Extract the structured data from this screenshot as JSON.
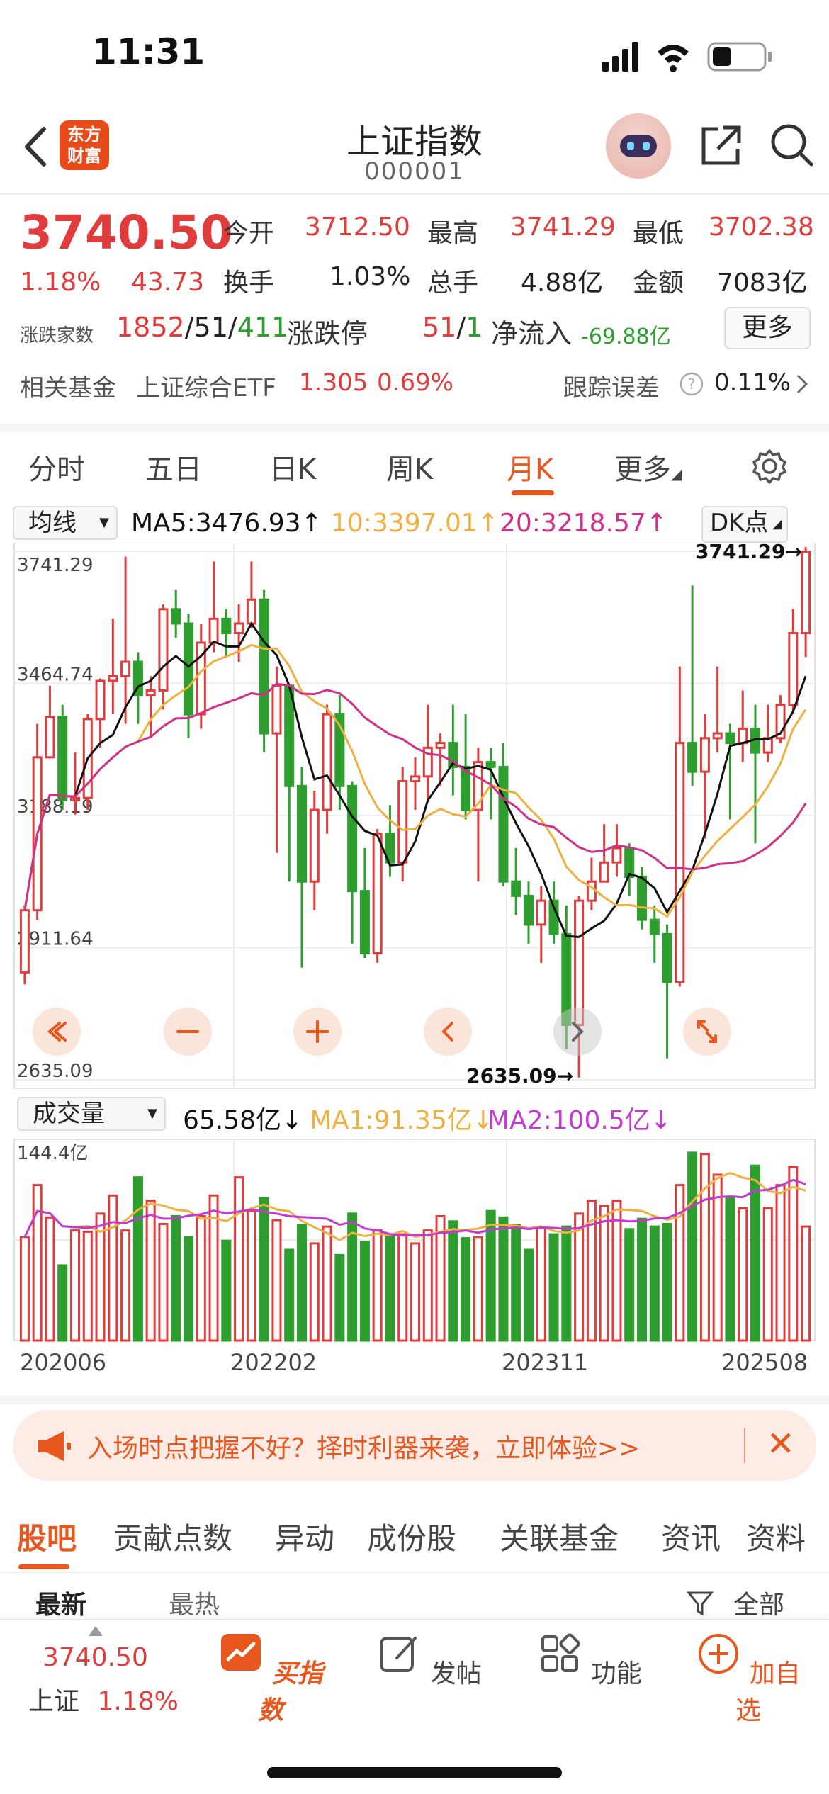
{
  "status": {
    "time": "11:31"
  },
  "nav": {
    "logo": "东方\n财富",
    "logo_l1": "东方",
    "logo_l2": "财富",
    "title": "上证指数",
    "code": "000001"
  },
  "quote": {
    "price": "3740.50",
    "change_pct": "1.18%",
    "change": "43.73",
    "open_label": "今开",
    "open": "3712.50",
    "high_label": "最高",
    "high": "3741.29",
    "low_label": "最低",
    "low": "3702.38",
    "turnover_label": "换手",
    "turnover": "1.03%",
    "volume_label": "总手",
    "volume": "4.88亿",
    "amount_label": "金额",
    "amount": "7083亿",
    "breadth_label": "涨跌家数",
    "breadth_up": "1852",
    "breadth_flat": "/51/",
    "breadth_down": "411",
    "limit_label": "涨跌停",
    "limit_up": "51",
    "limit_sep": "/",
    "limit_down": "1",
    "inflow_label": "净流入",
    "inflow": "-69.88亿",
    "more": "更多"
  },
  "fund": {
    "label": "相关基金",
    "name": "上证综合ETF",
    "price": "1.305",
    "pct": "0.69%",
    "err_label": "跟踪误差",
    "err": "0.11%"
  },
  "tabs": [
    "分时",
    "五日",
    "日K",
    "周K",
    "月K",
    "更多"
  ],
  "chart_head": {
    "ma_select": "均线",
    "ma5": "MA5:3476.93↑",
    "ma10": "10:3397.01↑",
    "ma20": "20:3218.57↑",
    "dk": "DK点"
  },
  "vol_head": {
    "select": "成交量",
    "vol": "65.58亿↓",
    "ma1": "MA1:91.35亿↓",
    "ma2": "MA2:100.5亿↓"
  },
  "chart_data": [
    {
      "type": "candlestick",
      "title": "",
      "y_ticks": [
        "3741.29",
        "3464.74",
        "3188.19",
        "2911.64",
        "2635.09"
      ],
      "ylim": [
        2635.09,
        3741.29
      ],
      "max_label": "3741.29→",
      "min_label": "2635.09→",
      "x_ticks": [
        "202006",
        "202202",
        "202311",
        "202508"
      ],
      "colors": {
        "up": "#e03c3c",
        "down": "#2e9e2e",
        "ma5": "#111111",
        "ma10": "#f0b040",
        "ma20": "#d0308a"
      }
    },
    {
      "type": "bar",
      "title": "成交量",
      "y_top_label": "144.4亿",
      "ylim": [
        0,
        144.4
      ]
    }
  ],
  "ad": {
    "text": "入场时点把握不好？择时利器来袭，立即体验>>",
    "close": "✕"
  },
  "bottom_tabs": [
    "股吧",
    "贡献点数",
    "异动",
    "成份股",
    "关联基金",
    "资讯",
    "资料"
  ],
  "sub_tabs": {
    "newest": "最新",
    "hot": "最热",
    "all": "全部"
  },
  "tabbar": {
    "price": "3740.50",
    "name": "上证",
    "pct": "1.18%",
    "buy": "买指数",
    "post": "发帖",
    "func": "功能",
    "add": "加自选"
  }
}
